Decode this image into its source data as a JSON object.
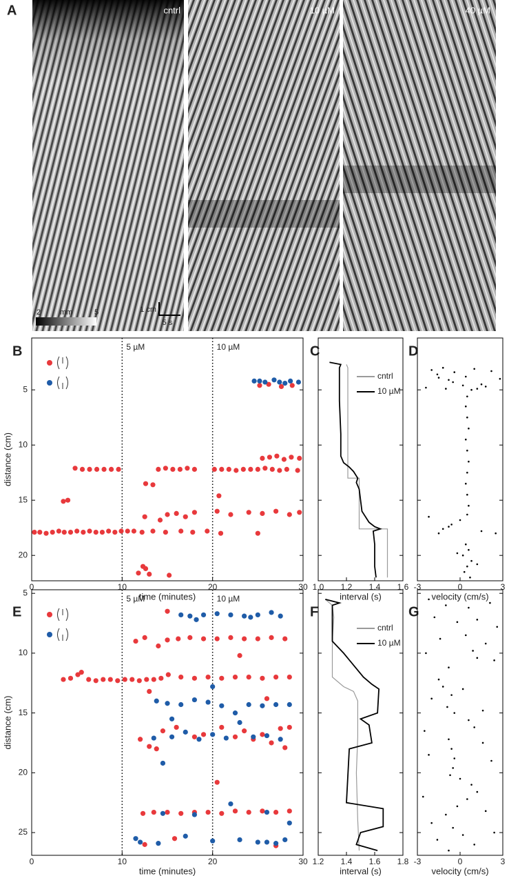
{
  "panel_a": {
    "letter": "A",
    "images": [
      {
        "label": "cntrl"
      },
      {
        "label": "10 µM"
      },
      {
        "label": "40 µM"
      }
    ],
    "colorbar": {
      "ticks": [
        2,
        5
      ],
      "unit": "mm"
    },
    "scale_bar": {
      "vertical": "1 cm",
      "horizontal": "5 s"
    }
  },
  "chart_data": [
    {
      "type": "scatter",
      "panel": "B",
      "xlabel": "time (minutes)",
      "ylabel": "distance (cm)",
      "xlim": [
        0,
        30
      ],
      "xticks": [
        0,
        10,
        20,
        30
      ],
      "ylim": [
        0.3,
        22.3
      ],
      "yticks": [
        5,
        10,
        15,
        20
      ],
      "y_inverted": true,
      "vlines": [
        {
          "x": 10,
          "label": "5 µM"
        },
        {
          "x": 20,
          "label": "10 µM"
        }
      ],
      "series": [
        {
          "color": "#e8393c",
          "x": [
            0.3,
            0.9,
            1.6,
            2.3,
            3.0,
            3.6,
            4.3,
            5.0,
            5.7,
            6.4,
            7.1,
            7.8,
            8.5,
            9.2,
            9.9,
            10.6,
            11.3,
            12.2,
            13.4,
            14.8,
            16.5,
            17.8,
            19.4,
            4.8,
            5.6,
            6.4,
            7.2,
            8.0,
            8.8,
            9.6,
            14.0,
            14.8,
            15.6,
            16.4,
            17.2,
            18.0,
            20.2,
            21.0,
            21.8,
            22.6,
            23.4,
            24.2,
            25.0,
            25.8,
            26.6,
            27.4,
            28.2,
            29.4,
            3.5,
            4.0,
            12.5,
            14.2,
            15.0,
            16.0,
            17.0,
            18.0,
            20.5,
            22.0,
            24.0,
            25.5,
            27.0,
            28.5,
            29.6,
            25.5,
            26.3,
            27.1,
            27.9,
            28.7,
            29.6,
            25.2,
            26.2,
            27.6,
            28.8,
            12.6,
            13.4,
            11.8,
            12.3,
            13.0,
            15.2,
            12.6,
            20.7,
            20.9,
            25.0
          ],
          "values": [
            17.9,
            17.9,
            18.0,
            17.9,
            17.8,
            17.9,
            17.9,
            17.8,
            17.9,
            17.8,
            17.9,
            17.9,
            17.8,
            17.9,
            17.8,
            17.8,
            17.8,
            17.9,
            17.8,
            17.9,
            17.8,
            17.9,
            17.8,
            12.1,
            12.2,
            12.2,
            12.2,
            12.2,
            12.2,
            12.2,
            12.2,
            12.1,
            12.2,
            12.2,
            12.1,
            12.2,
            12.2,
            12.2,
            12.2,
            12.3,
            12.2,
            12.2,
            12.2,
            12.1,
            12.2,
            12.3,
            12.2,
            12.3,
            15.1,
            15.0,
            16.5,
            16.8,
            16.3,
            16.2,
            16.5,
            16.1,
            16.0,
            16.3,
            16.1,
            16.2,
            16.0,
            16.3,
            16.1,
            11.2,
            11.1,
            11.0,
            11.3,
            11.1,
            11.2,
            4.6,
            4.5,
            4.7,
            4.6,
            13.5,
            13.6,
            21.6,
            21.0,
            21.7,
            21.8,
            21.2,
            14.6,
            18.0,
            18.0
          ]
        },
        {
          "color": "#1f5ca8",
          "x": [
            24.6,
            25.2,
            25.8,
            26.8,
            27.4,
            28.0,
            28.6,
            29.5
          ],
          "values": [
            4.2,
            4.2,
            4.3,
            4.1,
            4.3,
            4.4,
            4.2,
            4.3
          ]
        }
      ]
    },
    {
      "type": "line",
      "panel": "C",
      "xlabel": "interval (s)",
      "xlim": [
        1.0,
        1.6
      ],
      "xticks": [
        {
          "value": 1,
          "label": "1.0"
        },
        1.2,
        1.4,
        1.6
      ],
      "ylim": [
        0.3,
        22.3
      ],
      "yticks": [
        5,
        10,
        15,
        20
      ],
      "y_inverted": true,
      "series": [
        {
          "name": "cntrl",
          "color": "#9a9a9a",
          "x": [
            1.2,
            1.21,
            1.21,
            1.29,
            1.29,
            1.49,
            1.49
          ],
          "values": [
            2.7,
            3.0,
            13.0,
            13.0,
            17.6,
            17.6,
            22.0
          ]
        },
        {
          "name": "10 µM",
          "color": "#000000",
          "x": [
            1.08,
            1.16,
            1.15,
            1.15,
            1.16,
            1.16,
            1.18,
            1.22,
            1.25,
            1.28,
            1.27,
            1.29,
            1.31,
            1.36,
            1.4,
            1.44,
            1.39,
            1.4,
            1.4,
            1.41
          ],
          "values": [
            2.5,
            2.7,
            3.0,
            6.0,
            9.0,
            11.0,
            11.6,
            12.0,
            12.4,
            13.0,
            13.4,
            14.0,
            16.0,
            17.0,
            17.4,
            17.6,
            17.8,
            19.0,
            21.0,
            22.0
          ]
        }
      ]
    },
    {
      "type": "scatter",
      "panel": "D",
      "xlabel": "velocity (cm/s)",
      "xlim": [
        -3,
        3
      ],
      "xticks": [
        -3,
        0,
        3
      ],
      "ylim": [
        0.3,
        22.3
      ],
      "yticks": [
        5,
        10,
        15,
        20
      ],
      "y_inverted": true,
      "series": [
        {
          "color": "#000000",
          "x": [
            -2.0,
            -1.6,
            -1.2,
            -0.8,
            -0.4,
            0.4,
            1.0,
            1.5,
            2.2,
            2.8,
            -2.4,
            -1.0,
            0.2,
            0.8,
            1.8,
            -1.5,
            -0.5,
            1.2,
            0.5,
            0.4,
            0.5,
            0.6,
            0.4,
            0.5,
            0.6,
            0.5,
            0.4,
            0.5,
            0.6,
            0.5,
            0.0,
            -0.6,
            -1.2,
            -1.5,
            -0.8,
            -2.2,
            1.5,
            2.5,
            0.4,
            0.6,
            0.2,
            0.8,
            0.5,
            0.3,
            0.7,
            1.2,
            -0.2
          ],
          "values": [
            3.2,
            3.6,
            3.0,
            4.1,
            3.4,
            3.8,
            3.1,
            4.5,
            3.3,
            4.0,
            4.8,
            4.9,
            4.6,
            5.0,
            4.7,
            3.9,
            4.3,
            4.9,
            5.6,
            6.5,
            7.5,
            8.5,
            9.5,
            10.5,
            11.5,
            12.5,
            13.5,
            14.5,
            15.5,
            16.3,
            16.8,
            17.2,
            17.6,
            18.0,
            17.4,
            16.5,
            17.8,
            18.0,
            19.0,
            19.5,
            20.0,
            20.5,
            21.0,
            21.5,
            22.0,
            20.8,
            19.8
          ]
        }
      ]
    },
    {
      "type": "scatter",
      "panel": "E",
      "xlabel": "time (minutes)",
      "ylabel": "distance (cm)",
      "xlim": [
        0,
        30
      ],
      "xticks": [
        0,
        10,
        20,
        30
      ],
      "ylim": [
        4.7,
        26.9
      ],
      "yticks": [
        5,
        10,
        15,
        20,
        25
      ],
      "y_inverted": true,
      "vlines": [
        {
          "x": 10,
          "label": "5 µM"
        },
        {
          "x": 20,
          "label": "10 µM"
        }
      ],
      "series": [
        {
          "color": "#e8393c",
          "x": [
            3.5,
            4.3,
            5.1,
            5.5,
            6.3,
            7.1,
            7.9,
            8.7,
            9.5,
            10.3,
            11.1,
            11.9,
            12.7,
            13.5,
            14.3,
            15.1,
            16.5,
            18,
            19.5,
            21,
            22.5,
            24,
            25.5,
            27,
            28.5,
            14.0,
            15.0,
            16.2,
            17.5,
            19.0,
            20.5,
            22.0,
            23.5,
            25.0,
            26.5,
            28.0,
            12.3,
            13.5,
            15.0,
            16.5,
            18.0,
            19.5,
            21.0,
            22.5,
            24.0,
            25.5,
            27.0,
            28.5,
            12.0,
            13.0,
            14.5,
            16.0,
            18.0,
            19.0,
            21.0,
            22.5,
            23.5,
            24.5,
            25.5,
            26.5,
            27.5,
            28.5,
            20.5,
            13.8,
            15.0,
            11.5,
            12.5,
            13.0,
            23.0,
            26.0,
            28.0,
            12.5,
            15.8,
            27.0
          ],
          "values": [
            12.2,
            12.1,
            11.8,
            11.6,
            12.2,
            12.3,
            12.2,
            12.2,
            12.3,
            12.2,
            12.2,
            12.3,
            12.2,
            12.2,
            12.1,
            11.8,
            12.0,
            12.1,
            12.0,
            12.1,
            12.0,
            12.0,
            12.1,
            12.0,
            12.0,
            9.4,
            8.9,
            8.8,
            8.7,
            8.8,
            8.8,
            8.7,
            8.8,
            8.8,
            8.7,
            8.8,
            23.4,
            23.3,
            23.3,
            23.4,
            23.3,
            23.3,
            23.4,
            23.2,
            23.3,
            23.2,
            23.3,
            23.2,
            17.2,
            17.8,
            16.5,
            16.2,
            17.0,
            16.8,
            16.2,
            17.0,
            16.5,
            17.2,
            16.8,
            17.5,
            16.3,
            16.2,
            20.8,
            18.0,
            6.5,
            9.0,
            8.7,
            13.2,
            10.2,
            13.8,
            17.9,
            26.0,
            25.5,
            26.1
          ]
        },
        {
          "color": "#1f5ca8",
          "x": [
            16.5,
            17.5,
            19.0,
            20.5,
            22.0,
            23.5,
            25.0,
            26.5,
            27.5,
            18.2,
            24.2,
            13.8,
            15.0,
            16.5,
            18.0,
            19.5,
            21.0,
            22.5,
            24.0,
            25.5,
            27.0,
            28.5,
            15.5,
            13.5,
            15.5,
            17.0,
            18.5,
            20.0,
            21.5,
            23.0,
            24.5,
            26.0,
            27.5,
            14.5,
            11.5,
            12.0,
            14.0,
            17.0,
            20.0,
            23.0,
            25.0,
            26.0,
            27.0,
            28.0,
            14.5,
            18.0,
            22.0,
            26.0,
            28.5,
            20.0
          ],
          "values": [
            6.8,
            6.9,
            6.8,
            6.7,
            6.8,
            6.9,
            6.8,
            6.6,
            6.9,
            7.2,
            7.0,
            14.0,
            14.2,
            14.3,
            13.9,
            14.1,
            14.4,
            15.0,
            14.3,
            14.4,
            14.3,
            14.3,
            15.5,
            17.1,
            17.0,
            16.6,
            17.2,
            16.8,
            17.1,
            15.8,
            17.0,
            16.9,
            17.2,
            19.2,
            25.5,
            25.8,
            25.9,
            25.3,
            25.7,
            25.6,
            25.8,
            25.8,
            25.9,
            25.6,
            23.4,
            23.5,
            22.6,
            23.3,
            24.2,
            12.8
          ]
        }
      ]
    },
    {
      "type": "line",
      "panel": "F",
      "xlabel": "interval (s)",
      "xlim": [
        1.2,
        1.8
      ],
      "xticks": [
        1.2,
        1.4,
        1.6,
        1.8
      ],
      "ylim": [
        4.7,
        26.9
      ],
      "yticks": [
        5,
        10,
        15,
        20,
        25
      ],
      "y_inverted": true,
      "series": [
        {
          "name": "cntrl",
          "color": "#9a9a9a",
          "x": [
            1.25,
            1.3,
            1.31,
            1.3,
            1.3,
            1.38,
            1.45,
            1.48,
            1.48,
            1.47,
            1.48,
            1.49
          ],
          "values": [
            5.5,
            6.0,
            7.0,
            9.0,
            12.0,
            12.8,
            13.2,
            14.0,
            17.0,
            20.0,
            24.0,
            26.5
          ]
        },
        {
          "name": "10 µM",
          "color": "#000000",
          "x": [
            1.25,
            1.35,
            1.3,
            1.3,
            1.38,
            1.45,
            1.52,
            1.58,
            1.63,
            1.62,
            1.5,
            1.56,
            1.58,
            1.42,
            1.4,
            1.66,
            1.66,
            1.5,
            1.47,
            1.62
          ],
          "values": [
            5.5,
            5.8,
            6.0,
            9.0,
            10.0,
            11.0,
            12.0,
            12.6,
            13.0,
            15.0,
            15.5,
            16.0,
            17.5,
            18.0,
            22.5,
            23.0,
            24.5,
            25.0,
            26.0,
            26.5
          ]
        }
      ]
    },
    {
      "type": "scatter",
      "panel": "G",
      "xlabel": "velocity (cm/s)",
      "xlim": [
        -3,
        3
      ],
      "xticks": [
        -3,
        0,
        3
      ],
      "ylim": [
        4.7,
        26.9
      ],
      "yticks": [
        5,
        10,
        15,
        20,
        25
      ],
      "y_inverted": true,
      "series": [
        {
          "color": "#000000",
          "x": [
            -2.2,
            -1.0,
            0.6,
            2.1,
            -1.8,
            -0.2,
            1.2,
            2.6,
            0.4,
            -1.4,
            1.8,
            0.9,
            1.2,
            -2.4,
            2.4,
            -0.8,
            -1.5,
            -1.2,
            -0.6,
            0.2,
            -2.0,
            -0.9,
            -0.4,
            1.6,
            0.6,
            1.0,
            -2.5,
            -0.8,
            -0.6,
            -0.4,
            -0.5,
            -0.7,
            2.2,
            -2.2,
            1.6,
            0.8,
            1.2,
            0.5,
            -0.2,
            -1.0,
            1.8,
            -2.0,
            -0.5,
            0.2,
            -1.6,
            1.0,
            -0.8,
            2.4,
            -2.6,
            0.0
          ],
          "values": [
            5.5,
            6.0,
            6.2,
            5.8,
            7.0,
            7.4,
            7.2,
            7.8,
            8.5,
            8.8,
            9.2,
            9.8,
            10.4,
            10.0,
            10.6,
            11.2,
            12.2,
            12.8,
            13.5,
            13.0,
            13.8,
            14.5,
            15.0,
            14.8,
            15.6,
            16.2,
            16.5,
            17.2,
            18.0,
            18.8,
            19.6,
            20.2,
            19.0,
            18.5,
            17.5,
            21.0,
            21.6,
            22.2,
            22.8,
            23.5,
            23.2,
            24.2,
            24.6,
            25.2,
            25.6,
            26.0,
            26.5,
            25.0,
            22.0,
            20.5
          ]
        }
      ]
    }
  ]
}
